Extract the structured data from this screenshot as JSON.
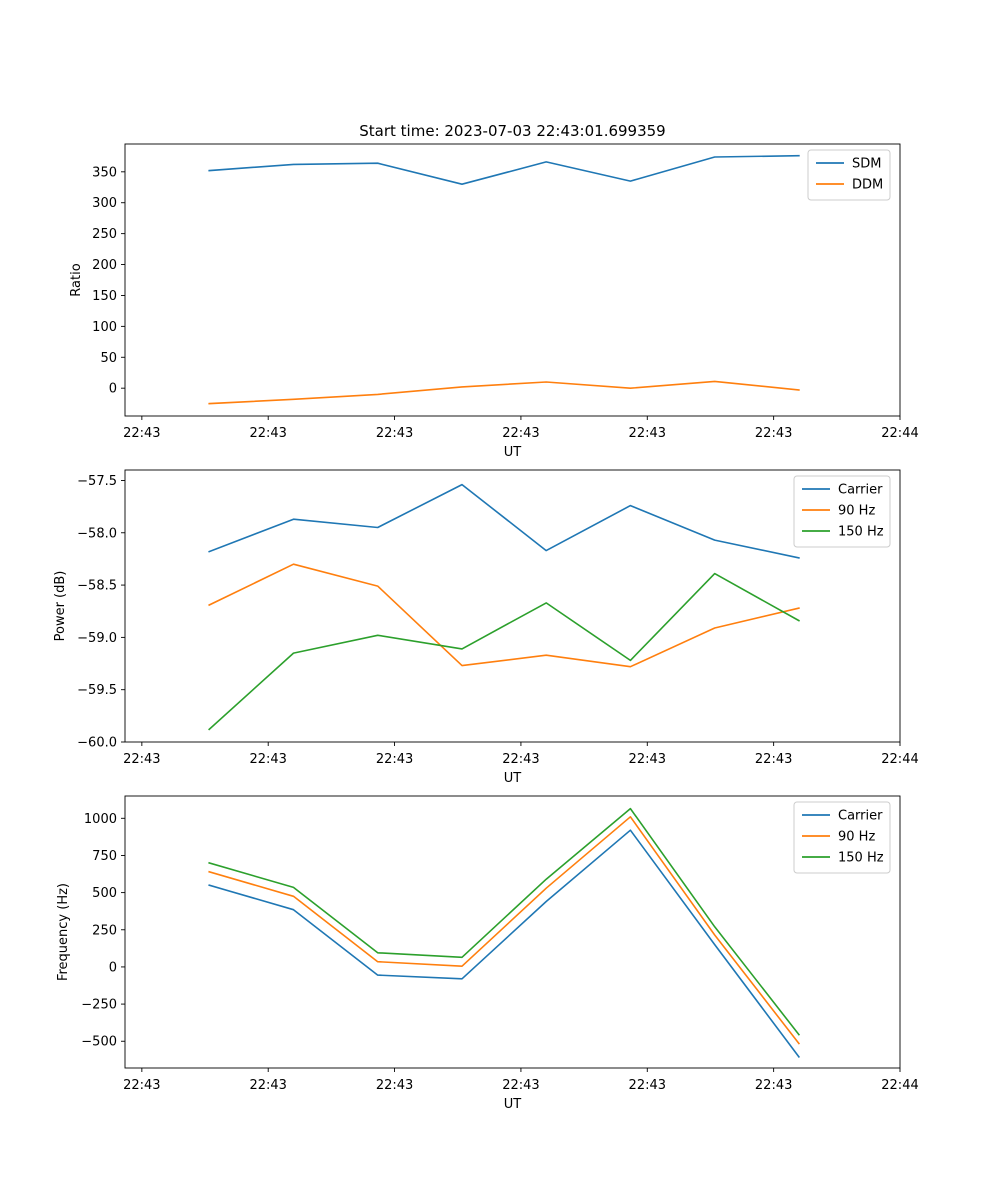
{
  "figure": {
    "title": "Start time: 2023-07-03 22:43:01.699359"
  },
  "colors": {
    "c0": "#1f77b4",
    "c1": "#ff7f0e",
    "c2": "#2ca02c"
  },
  "chart_data": [
    {
      "type": "line",
      "title": "Start time: 2023-07-03 22:43:01.699359",
      "xlabel": "UT",
      "ylabel": "Ratio",
      "xtick_labels": [
        "22:43",
        "22:43",
        "22:43",
        "22:43",
        "22:43",
        "22:43",
        "22:43"
      ],
      "xtick_last": "22:44",
      "x_index": [
        1,
        2,
        3,
        4,
        5,
        6,
        7,
        8
      ],
      "xlim": [
        0,
        9.2
      ],
      "ylim": [
        -45,
        395
      ],
      "yticks": [
        0,
        50,
        100,
        150,
        200,
        250,
        300,
        350
      ],
      "legend_position": "top-right",
      "series": [
        {
          "name": "SDM",
          "color": "#1f77b4",
          "values": [
            352,
            362,
            364,
            330,
            366,
            335,
            374,
            376
          ]
        },
        {
          "name": "DDM",
          "color": "#ff7f0e",
          "values": [
            -25,
            -18,
            -10,
            2,
            10,
            0,
            11,
            -3
          ]
        }
      ]
    },
    {
      "type": "line",
      "title": "",
      "xlabel": "UT",
      "ylabel": "Power (dB)",
      "xtick_labels": [
        "22:43",
        "22:43",
        "22:43",
        "22:43",
        "22:43",
        "22:43",
        "22:43"
      ],
      "xtick_last": "22:44",
      "x_index": [
        1,
        2,
        3,
        4,
        5,
        6,
        7,
        8
      ],
      "xlim": [
        0,
        9.2
      ],
      "ylim": [
        -60.0,
        -57.4
      ],
      "yticks": [
        -60.0,
        -59.5,
        -59.0,
        -58.5,
        -58.0,
        -57.5
      ],
      "ytick_labels": [
        "−60.0",
        "−59.5",
        "−59.0",
        "−58.5",
        "−58.0",
        "−57.5"
      ],
      "legend_position": "top-right",
      "series": [
        {
          "name": "Carrier",
          "color": "#1f77b4",
          "values": [
            -58.18,
            -57.87,
            -57.95,
            -57.54,
            -58.17,
            -57.74,
            -58.07,
            -58.24
          ]
        },
        {
          "name": "90 Hz",
          "color": "#ff7f0e",
          "values": [
            -58.69,
            -58.3,
            -58.51,
            -59.27,
            -59.17,
            -59.28,
            -58.91,
            -58.72
          ]
        },
        {
          "name": "150 Hz",
          "color": "#2ca02c",
          "values": [
            -59.88,
            -59.15,
            -58.98,
            -59.11,
            -58.67,
            -59.22,
            -58.39,
            -58.84
          ]
        }
      ]
    },
    {
      "type": "line",
      "title": "",
      "xlabel": "UT",
      "ylabel": "Frequency (Hz)",
      "xtick_labels": [
        "22:43",
        "22:43",
        "22:43",
        "22:43",
        "22:43",
        "22:43",
        "22:43"
      ],
      "xtick_last": "22:44",
      "x_index": [
        1,
        2,
        3,
        4,
        5,
        6,
        7,
        8
      ],
      "xlim": [
        0,
        9.2
      ],
      "ylim": [
        -680,
        1150
      ],
      "yticks": [
        -500,
        -250,
        0,
        250,
        500,
        750,
        1000
      ],
      "ytick_labels": [
        "−500",
        "−250",
        "0",
        "250",
        "500",
        "750",
        "1000"
      ],
      "legend_position": "top-right",
      "series": [
        {
          "name": "Carrier",
          "color": "#1f77b4",
          "values": [
            550,
            385,
            -55,
            -80,
            440,
            920,
            150,
            -605
          ]
        },
        {
          "name": "90 Hz",
          "color": "#ff7f0e",
          "values": [
            640,
            475,
            35,
            5,
            530,
            1010,
            215,
            -515
          ]
        },
        {
          "name": "150 Hz",
          "color": "#2ca02c",
          "values": [
            700,
            535,
            95,
            65,
            590,
            1065,
            270,
            -455
          ]
        }
      ]
    }
  ]
}
